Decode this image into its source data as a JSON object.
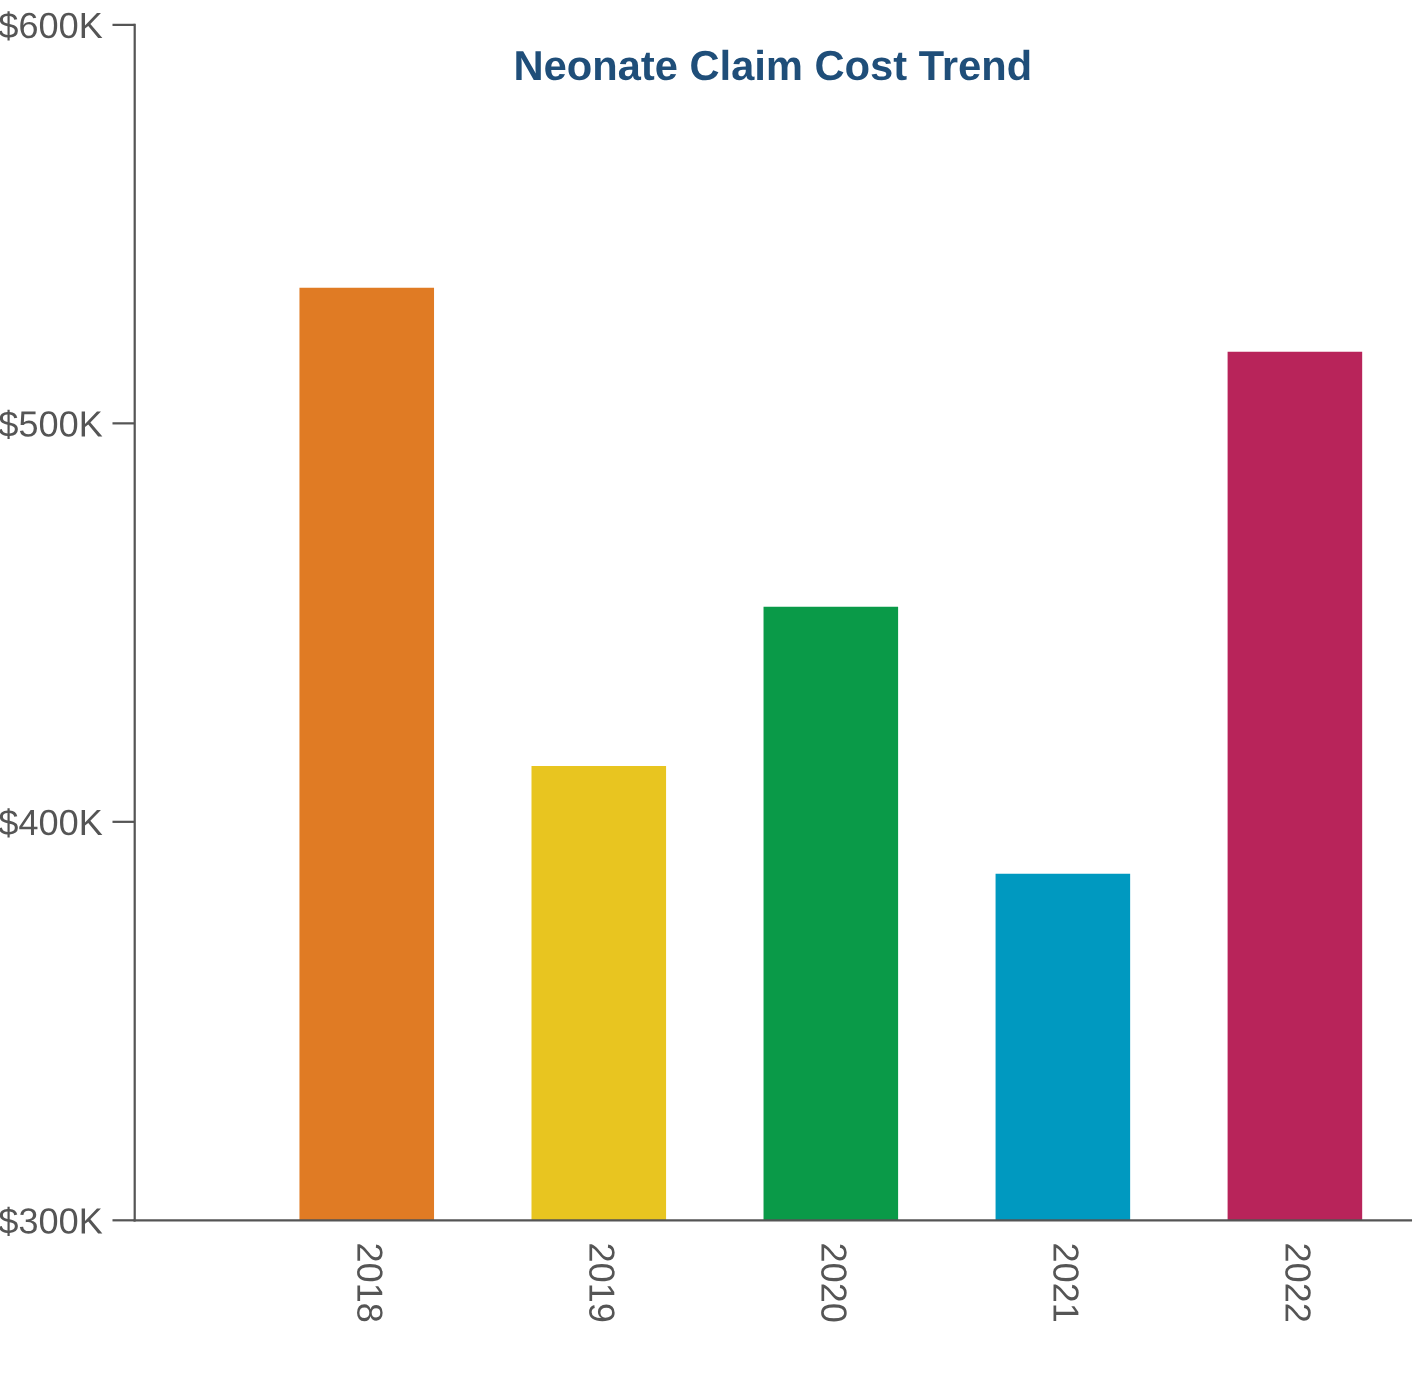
{
  "chart_data": {
    "type": "bar",
    "title": "Neonate Claim Cost Trend",
    "categories": [
      "2018",
      "2019",
      "2020",
      "2021",
      "2022"
    ],
    "values": [
      534,
      414,
      454,
      387,
      518
    ],
    "colors": [
      "#e07b24",
      "#e8c520",
      "#0a9a48",
      "#0099c0",
      "#b8245a"
    ],
    "ylim": [
      300,
      600
    ],
    "yticks": [
      {
        "value": 300,
        "label": "$300K"
      },
      {
        "value": 400,
        "label": "$400K"
      },
      {
        "value": 500,
        "label": "$500K"
      },
      {
        "value": 600,
        "label": "$600K"
      }
    ],
    "grid": false
  }
}
